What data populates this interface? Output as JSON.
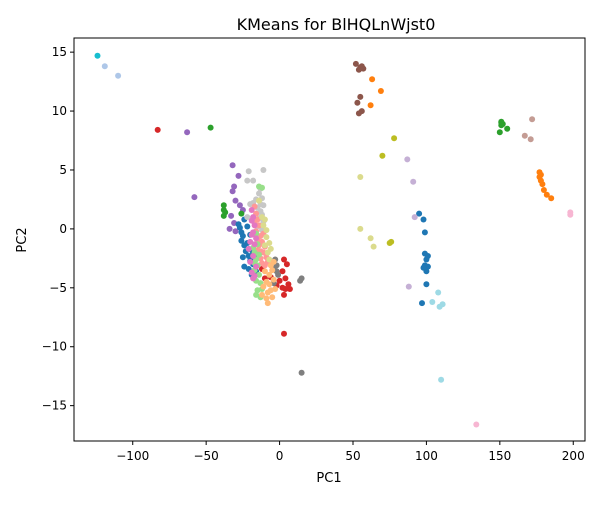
{
  "chart_data": {
    "type": "scatter",
    "title": "KMeans for BlHQLnWjst0",
    "xlabel": "PC1",
    "ylabel": "PC2",
    "xlim": [
      -140,
      208
    ],
    "ylim": [
      -18.0,
      16.2
    ],
    "xticks": [
      -100,
      -50,
      0,
      50,
      100,
      150,
      200
    ],
    "yticks": [
      -15,
      -10,
      -5,
      0,
      5,
      10,
      15
    ],
    "grid": false,
    "legend": "none",
    "series": [
      {
        "color": "#17becf",
        "points": [
          [
            -124,
            14.7
          ]
        ]
      },
      {
        "color": "#aec7e8",
        "points": [
          [
            -119,
            13.8
          ],
          [
            -110,
            13.0
          ]
        ]
      },
      {
        "color": "#d62728",
        "points": [
          [
            -83,
            8.4
          ],
          [
            -12,
            -3.4
          ],
          [
            -10,
            -4.2
          ],
          [
            -6,
            -4.1
          ],
          [
            -2,
            -4.8
          ],
          [
            0,
            -4.4
          ],
          [
            2,
            -3.6
          ],
          [
            3,
            -2.6
          ],
          [
            4,
            -4.2
          ],
          [
            5,
            -3.0
          ],
          [
            6,
            -4.7
          ],
          [
            7,
            -5.1
          ],
          [
            3,
            -5.6
          ],
          [
            4,
            -5.1
          ],
          [
            2,
            -5.0
          ],
          [
            3,
            -8.9
          ]
        ]
      },
      {
        "color": "#9467bd",
        "points": [
          [
            -63,
            8.2
          ],
          [
            -58,
            2.7
          ],
          [
            -32,
            5.4
          ],
          [
            -28,
            4.5
          ],
          [
            -31,
            3.6
          ],
          [
            -32,
            3.2
          ],
          [
            -30,
            2.4
          ],
          [
            -27,
            2.0
          ],
          [
            -25,
            1.6
          ],
          [
            -33,
            1.1
          ],
          [
            -31,
            0.5
          ],
          [
            -34,
            0.0
          ],
          [
            -30,
            -0.2
          ]
        ]
      },
      {
        "color": "#2ca02c",
        "points": [
          [
            -47,
            8.6
          ],
          [
            -38,
            2.0
          ],
          [
            -38,
            1.6
          ],
          [
            -37,
            1.4
          ],
          [
            -38,
            1.1
          ],
          [
            -26,
            1.3
          ],
          [
            150,
            8.2
          ],
          [
            151,
            9.1
          ],
          [
            151,
            8.8
          ],
          [
            151,
            9.0
          ],
          [
            152,
            8.9
          ],
          [
            155,
            8.5
          ]
        ]
      },
      {
        "color": "#1f77b4",
        "points": [
          [
            -28,
            0.4
          ],
          [
            -27,
            0.1
          ],
          [
            -26,
            -0.3
          ],
          [
            -25,
            -0.6
          ],
          [
            -26,
            -1.0
          ],
          [
            -24,
            -1.4
          ],
          [
            -23,
            -1.9
          ],
          [
            -22,
            -1.2
          ],
          [
            -21,
            -2.3
          ],
          [
            -20,
            -2.7
          ],
          [
            -19,
            -1.8
          ],
          [
            -18,
            -2.1
          ],
          [
            -20,
            -0.5
          ],
          [
            -22,
            0.2
          ],
          [
            -18,
            -3.0
          ],
          [
            -24,
            0.8
          ],
          [
            -17,
            -2.4
          ],
          [
            -25,
            -2.4
          ],
          [
            -24,
            -3.2
          ],
          [
            -21,
            -3.4
          ],
          [
            -19,
            -3.9
          ],
          [
            -16,
            -3.6
          ],
          [
            95,
            1.3
          ],
          [
            98,
            0.8
          ],
          [
            99,
            -0.3
          ],
          [
            99,
            -2.1
          ],
          [
            100,
            -2.6
          ],
          [
            101,
            -2.3
          ],
          [
            99,
            -3.1
          ],
          [
            101,
            -3.2
          ],
          [
            100,
            -3.6
          ],
          [
            98,
            -3.3
          ],
          [
            100,
            -4.7
          ],
          [
            97,
            -6.3
          ]
        ]
      },
      {
        "color": "#7f7f7f",
        "points": [
          [
            -4,
            -3.4
          ],
          [
            -3,
            -2.6
          ],
          [
            -2,
            -3.1
          ],
          [
            -1,
            -3.9
          ],
          [
            -4,
            -4.6
          ],
          [
            -2,
            -3.6
          ],
          [
            14,
            -4.4
          ],
          [
            15,
            -4.2
          ],
          [
            15,
            -12.2
          ]
        ]
      },
      {
        "color": "#c7c7c7",
        "points": [
          [
            -11,
            5.0
          ],
          [
            -21,
            4.9
          ],
          [
            -22,
            4.1
          ],
          [
            -18,
            4.1
          ],
          [
            -13,
            3.4
          ],
          [
            -14,
            3.0
          ],
          [
            -16,
            2.5
          ],
          [
            -18,
            2.2
          ],
          [
            -20,
            2.1
          ],
          [
            -12,
            2.6
          ],
          [
            -13,
            2.1
          ],
          [
            -15,
            1.8
          ],
          [
            -13,
            1.5
          ],
          [
            -12,
            1.2
          ],
          [
            -14,
            0.9
          ],
          [
            -11,
            0.6
          ],
          [
            -15,
            0.2
          ],
          [
            -12,
            -0.1
          ],
          [
            -22,
            1.0
          ],
          [
            -11,
            2.0
          ]
        ]
      },
      {
        "color": "#ff9896",
        "points": [
          [
            -17,
            1.9
          ],
          [
            -16,
            1.3
          ],
          [
            -15,
            0.8
          ],
          [
            -14,
            0.3
          ],
          [
            -16,
            -0.2
          ],
          [
            -13,
            -0.6
          ],
          [
            -12,
            -1.1
          ],
          [
            -14,
            -1.4
          ],
          [
            -15,
            -1.8
          ],
          [
            -11,
            -2.0
          ],
          [
            -10,
            -1.5
          ],
          [
            -13,
            -2.5
          ],
          [
            -12,
            -2.9
          ],
          [
            -10,
            -3.1
          ],
          [
            -9,
            -2.4
          ],
          [
            -11,
            -0.4
          ],
          [
            -17,
            0.5
          ],
          [
            -8,
            -2.8
          ],
          [
            -13,
            -1.9
          ],
          [
            -15,
            -0.9
          ]
        ]
      },
      {
        "color": "#dbdb8d",
        "points": [
          [
            -14,
            2.4
          ],
          [
            -12,
            1.0
          ],
          [
            -11,
            0.3
          ],
          [
            -9,
            -0.7
          ],
          [
            -10,
            -1.4
          ],
          [
            -8,
            -2.0
          ],
          [
            -7,
            -1.2
          ],
          [
            -9,
            -0.1
          ],
          [
            -7,
            -2.6
          ],
          [
            -6,
            -1.7
          ],
          [
            -10,
            0.8
          ],
          [
            55,
            4.4
          ],
          [
            55,
            0.0
          ],
          [
            62,
            -0.8
          ],
          [
            64,
            -1.5
          ]
        ]
      },
      {
        "color": "#98df8a",
        "points": [
          [
            -14,
            3.6
          ],
          [
            -12,
            3.5
          ],
          [
            -16,
            -0.4
          ],
          [
            -15,
            -1.3
          ],
          [
            -17,
            -2.0
          ],
          [
            -16,
            -2.6
          ],
          [
            -15,
            -3.1
          ],
          [
            -17,
            -3.5
          ],
          [
            -14,
            -3.9
          ],
          [
            -16,
            -4.4
          ],
          [
            -13,
            -4.6
          ],
          [
            -15,
            -5.2
          ],
          [
            -13,
            -5.8
          ],
          [
            -16,
            -5.6
          ],
          [
            -12,
            -5.1
          ],
          [
            -17,
            -2.9
          ],
          [
            -18,
            -1.6
          ],
          [
            -14,
            -2.2
          ]
        ]
      },
      {
        "color": "#e377c2",
        "points": [
          [
            -19,
            1.6
          ],
          [
            -18,
            1.0
          ],
          [
            -17,
            0.3
          ],
          [
            -19,
            -0.5
          ],
          [
            -17,
            -1.3
          ],
          [
            -18,
            -2.3
          ],
          [
            -16,
            -3.2
          ],
          [
            -19,
            -3.7
          ],
          [
            -18,
            -4.2
          ],
          [
            -20,
            -1.1
          ],
          [
            -18,
            -0.3
          ],
          [
            -16,
            -0.8
          ],
          [
            -19,
            0.7
          ],
          [
            -17,
            -4.0
          ],
          [
            -20,
            -2.8
          ],
          [
            -21,
            -1.7
          ]
        ]
      },
      {
        "color": "#ffbb78",
        "points": [
          [
            -10,
            -3.6
          ],
          [
            -9,
            -4.5
          ],
          [
            -8,
            -5.4
          ],
          [
            -11,
            -4.9
          ],
          [
            -7,
            -4.7
          ],
          [
            -5,
            -5.8
          ],
          [
            -6,
            -5.2
          ],
          [
            -8,
            -6.3
          ],
          [
            -9,
            -5.9
          ],
          [
            -12,
            -5.6
          ],
          [
            -7,
            -3.9
          ],
          [
            -5,
            -3.5
          ],
          [
            -4,
            -4.3
          ],
          [
            -6,
            -3.1
          ],
          [
            -3,
            -5.1
          ],
          [
            -4,
            -2.8
          ]
        ]
      },
      {
        "color": "#8c564b",
        "points": [
          [
            52,
            14.0
          ],
          [
            55,
            13.7
          ],
          [
            56,
            13.8
          ],
          [
            54,
            13.5
          ],
          [
            57,
            13.6
          ],
          [
            55,
            11.2
          ],
          [
            53,
            10.7
          ],
          [
            56,
            10.0
          ],
          [
            54,
            9.8
          ]
        ]
      },
      {
        "color": "#ff7f0e",
        "points": [
          [
            63,
            12.7
          ],
          [
            69,
            11.7
          ],
          [
            62,
            10.5
          ],
          [
            177,
            4.8
          ],
          [
            177,
            4.4
          ],
          [
            178,
            4.6
          ],
          [
            178,
            4.1
          ],
          [
            179,
            3.8
          ],
          [
            180,
            3.3
          ],
          [
            182,
            2.9
          ],
          [
            185,
            2.6
          ]
        ]
      },
      {
        "color": "#bcbd22",
        "points": [
          [
            78,
            7.7
          ],
          [
            70,
            6.2
          ],
          [
            75,
            -1.2
          ],
          [
            76,
            -1.1
          ]
        ]
      },
      {
        "color": "#c5b0d5",
        "points": [
          [
            87,
            5.9
          ],
          [
            91,
            4.0
          ],
          [
            92,
            1.0
          ],
          [
            88,
            -4.9
          ]
        ]
      },
      {
        "color": "#c49c94",
        "points": [
          [
            172,
            9.3
          ],
          [
            167,
            7.9
          ],
          [
            171,
            7.6
          ]
        ]
      },
      {
        "color": "#9edae5",
        "points": [
          [
            104,
            -6.2
          ],
          [
            108,
            -5.4
          ],
          [
            109,
            -6.6
          ],
          [
            111,
            -6.4
          ],
          [
            110,
            -12.8
          ]
        ]
      },
      {
        "color": "#f7b6d2",
        "points": [
          [
            198,
            1.4
          ],
          [
            198,
            1.2
          ],
          [
            134,
            -16.6
          ]
        ]
      }
    ]
  }
}
